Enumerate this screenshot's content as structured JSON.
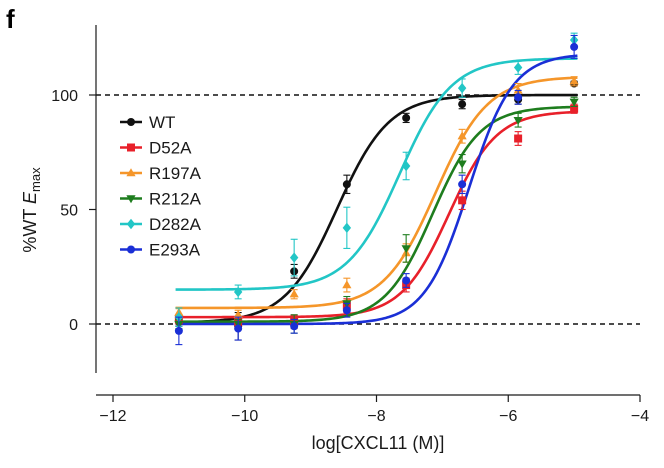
{
  "panel_label": "f",
  "chart_data": {
    "type": "line",
    "title": "",
    "xlabel": "log[CXCL11 (M)]",
    "ylabel_parts": {
      "prefix": "%WT ",
      "E": "E",
      "sub": "max"
    },
    "xlim": [
      -12,
      -4
    ],
    "ylim": [
      -20,
      130
    ],
    "xticks": [
      -12,
      -10,
      -8,
      -6,
      -4
    ],
    "xtick_labels": [
      "−12",
      "−10",
      "−8",
      "−6",
      "−4"
    ],
    "yticks": [
      0,
      50,
      100
    ],
    "ytick_labels": [
      "0",
      "50",
      "100"
    ],
    "reference_lines": [
      0,
      100
    ],
    "legend_position": "left",
    "x": [
      -11,
      -10.1,
      -9.25,
      -8.45,
      -7.55,
      -6.7,
      -5.85,
      -5
    ],
    "series": [
      {
        "name": "WT",
        "color": "#111111",
        "marker": "circle",
        "values": [
          1,
          -1,
          23,
          61,
          90,
          96,
          98,
          105
        ],
        "errors": [
          2,
          6,
          3,
          4,
          2,
          2,
          2,
          1
        ],
        "fit": {
          "bottom": 0.5,
          "top": 100,
          "logEC50": -8.6,
          "hill": 1.1
        }
      },
      {
        "name": "D52A",
        "color": "#e8202a",
        "marker": "square",
        "values": [
          2,
          1,
          1,
          8,
          17,
          54,
          81,
          94
        ],
        "errors": [
          2,
          2,
          3,
          3,
          3,
          4,
          3,
          2
        ],
        "fit": {
          "bottom": 3,
          "top": 93,
          "logEC50": -6.9,
          "hill": 1.2
        }
      },
      {
        "name": "R197A",
        "color": "#f5962a",
        "marker": "triangle-up",
        "values": [
          5,
          4,
          13,
          17,
          31,
          82,
          102,
          106
        ],
        "errors": [
          2,
          2,
          2,
          3,
          4,
          3,
          3,
          2
        ],
        "fit": {
          "bottom": 7,
          "top": 108,
          "logEC50": -7.1,
          "hill": 1.1
        }
      },
      {
        "name": "R212A",
        "color": "#1e7d1e",
        "marker": "triangle-down",
        "values": [
          0,
          0,
          0,
          9,
          33,
          70,
          89,
          97
        ],
        "errors": [
          2,
          2,
          4,
          3,
          6,
          4,
          3,
          2
        ],
        "fit": {
          "bottom": 1,
          "top": 95,
          "logEC50": -7.15,
          "hill": 1.2
        }
      },
      {
        "name": "D282A",
        "color": "#22c6c6",
        "marker": "diamond",
        "values": [
          3,
          14,
          29,
          42,
          69,
          103,
          112,
          124
        ],
        "errors": [
          4,
          3,
          8,
          9,
          6,
          4,
          3,
          3
        ],
        "fit": {
          "bottom": 15,
          "top": 116,
          "logEC50": -7.65,
          "hill": 1.1
        }
      },
      {
        "name": "E293A",
        "color": "#1a2fd6",
        "marker": "circle",
        "values": [
          -3,
          -2,
          -1,
          6,
          19,
          61,
          99,
          121
        ],
        "errors": [
          6,
          5,
          3,
          3,
          3,
          4,
          3,
          5
        ],
        "fit": {
          "bottom": 0,
          "top": 118,
          "logEC50": -6.6,
          "hill": 1.3
        }
      }
    ]
  }
}
